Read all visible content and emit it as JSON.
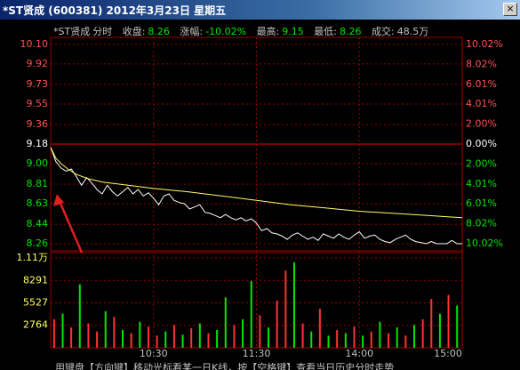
{
  "window_title": "*ST贤成 (600381) 2012年3月23日 星期五",
  "info": [
    {
      "label": "*ST贤成",
      "value": "分时"
    },
    {
      "label": "收盘:",
      "value": "8.26"
    },
    {
      "label": "涨幅:",
      "value": "-10.02%"
    },
    {
      "label": "最高:",
      "value": "9.15"
    },
    {
      "label": "最低:",
      "value": "8.26"
    },
    {
      "label": "成交:",
      "value": "48.5万"
    }
  ],
  "footer": "用键盘【方向键】移动光标看某一日K线，按【空格键】查看当日历史分时走势",
  "chart_data": [
    {
      "type": "line",
      "xlim": [
        0,
        240
      ],
      "xticks": [
        {
          "value": 60,
          "label": "10:30"
        },
        {
          "value": 120,
          "label": "11:30"
        },
        {
          "value": 180,
          "label": "14:00"
        },
        {
          "value": 240,
          "label": "15:00"
        }
      ],
      "ylim": [
        8.26,
        10.1
      ],
      "yticks": [
        {
          "value": 10.1,
          "label": "10.10"
        },
        9.92,
        9.73,
        9.55,
        9.36,
        9.18,
        {
          "value": 9.0,
          "label": "9.00"
        },
        8.81,
        8.63,
        8.44,
        8.26
      ],
      "y2lim": [
        -10.02,
        10.02
      ],
      "y2ticks": [
        {
          "value": 10.02,
          "label": "10.02%"
        },
        {
          "value": 8.02,
          "label": "8.02%"
        },
        {
          "value": 6.01,
          "label": "6.01%"
        },
        {
          "value": 4.01,
          "label": "4.01%"
        },
        {
          "value": 2.0,
          "label": "2.00%"
        },
        {
          "value": 0,
          "label": "0.00%"
        },
        {
          "value": -2.0,
          "label": "2.00%"
        },
        {
          "value": -4.01,
          "label": "4.01%"
        },
        {
          "value": -6.01,
          "label": "6.01%"
        },
        {
          "value": -8.02,
          "label": "8.02%"
        },
        {
          "value": -10.02,
          "label": "10.02%"
        }
      ],
      "grid": true,
      "series": [
        {
          "color": "#ffffff",
          "x": [
            0,
            3,
            6,
            9,
            12,
            15,
            18,
            21,
            24,
            27,
            30,
            33,
            36,
            39,
            42,
            45,
            48,
            51,
            54,
            57,
            60,
            63,
            66,
            69,
            72,
            75,
            78,
            81,
            84,
            87,
            90,
            93,
            96,
            99,
            102,
            105,
            108,
            111,
            114,
            117,
            120,
            123,
            126,
            129,
            132,
            135,
            138,
            141,
            144,
            147,
            150,
            153,
            156,
            159,
            162,
            165,
            168,
            171,
            174,
            177,
            180,
            183,
            186,
            189,
            192,
            195,
            198,
            201,
            204,
            207,
            210,
            213,
            216,
            219,
            222,
            225,
            228,
            231,
            234,
            237,
            240
          ],
          "values": [
            9.15,
            9.02,
            8.96,
            8.93,
            8.95,
            8.88,
            8.8,
            8.87,
            8.82,
            8.76,
            8.72,
            8.8,
            8.74,
            8.7,
            8.74,
            8.78,
            8.72,
            8.76,
            8.7,
            8.73,
            8.68,
            8.62,
            8.7,
            8.72,
            8.66,
            8.64,
            8.63,
            8.58,
            8.6,
            8.62,
            8.55,
            8.54,
            8.52,
            8.5,
            8.53,
            8.5,
            8.48,
            8.5,
            8.47,
            8.49,
            8.45,
            8.38,
            8.4,
            8.36,
            8.35,
            8.33,
            8.3,
            8.34,
            8.36,
            8.33,
            8.3,
            8.32,
            8.29,
            8.35,
            8.33,
            8.31,
            8.35,
            8.32,
            8.3,
            8.34,
            8.37,
            8.31,
            8.33,
            8.34,
            8.3,
            8.28,
            8.27,
            8.3,
            8.32,
            8.34,
            8.3,
            8.28,
            8.27,
            8.26,
            8.28,
            8.26,
            8.26,
            8.26,
            8.29,
            8.26,
            8.26
          ]
        },
        {
          "color": "#ffff66",
          "x": [
            0,
            3,
            6,
            10,
            15,
            22,
            30,
            45,
            60,
            80,
            100,
            120,
            140,
            160,
            180,
            200,
            220,
            240
          ],
          "values": [
            9.15,
            9.05,
            9.0,
            8.95,
            8.9,
            8.86,
            8.83,
            8.8,
            8.77,
            8.74,
            8.7,
            8.66,
            8.62,
            8.59,
            8.56,
            8.54,
            8.52,
            8.5
          ]
        }
      ]
    },
    {
      "type": "bar",
      "xlim": [
        0,
        240
      ],
      "ylim": [
        0,
        11055
      ],
      "yticks": [
        {
          "value": 11055,
          "label": "1.11万"
        },
        8291,
        5527,
        2764
      ],
      "x": [
        2,
        7,
        12,
        17,
        22,
        27,
        32,
        37,
        42,
        47,
        52,
        57,
        62,
        67,
        72,
        77,
        82,
        87,
        92,
        97,
        102,
        107,
        112,
        117,
        122,
        127,
        132,
        137,
        142,
        147,
        152,
        157,
        162,
        167,
        172,
        177,
        182,
        187,
        192,
        197,
        202,
        207,
        212,
        217,
        222,
        227,
        232,
        237
      ],
      "values": [
        3500,
        4200,
        2500,
        7800,
        3000,
        2000,
        4500,
        3800,
        2200,
        1800,
        3200,
        2600,
        1500,
        2000,
        2800,
        1600,
        2400,
        3000,
        1800,
        2200,
        6200,
        2800,
        3500,
        8200,
        4000,
        2500,
        5800,
        9500,
        10500,
        3000,
        2000,
        4800,
        1500,
        2200,
        1800,
        2600,
        1500,
        2000,
        3200,
        1800,
        2500,
        1500,
        2800,
        3500,
        6000,
        4200,
        6500,
        5200
      ],
      "colors": [
        "#ff3232",
        "#00e600",
        "#ff3232",
        "#00e600",
        "#ff3232",
        "#ff3232",
        "#00e600",
        "#ff3232",
        "#00e600",
        "#ff3232",
        "#00e600",
        "#ff3232",
        "#ff3232",
        "#00e600",
        "#ff3232",
        "#00e600",
        "#ff3232",
        "#00e600",
        "#ff3232",
        "#00e600",
        "#00e600",
        "#ff3232",
        "#00e600",
        "#00e600",
        "#ff3232",
        "#00e600",
        "#ff3232",
        "#ff3232",
        "#00e600",
        "#ff3232",
        "#00e600",
        "#ff3232",
        "#00e600",
        "#ff3232",
        "#00e600",
        "#ff3232",
        "#00e600",
        "#ff3232",
        "#00e600",
        "#ff3232",
        "#00e600",
        "#ff3232",
        "#00e600",
        "#ff3232",
        "#ff3232",
        "#00e600",
        "#ff3232",
        "#00e600"
      ]
    }
  ]
}
